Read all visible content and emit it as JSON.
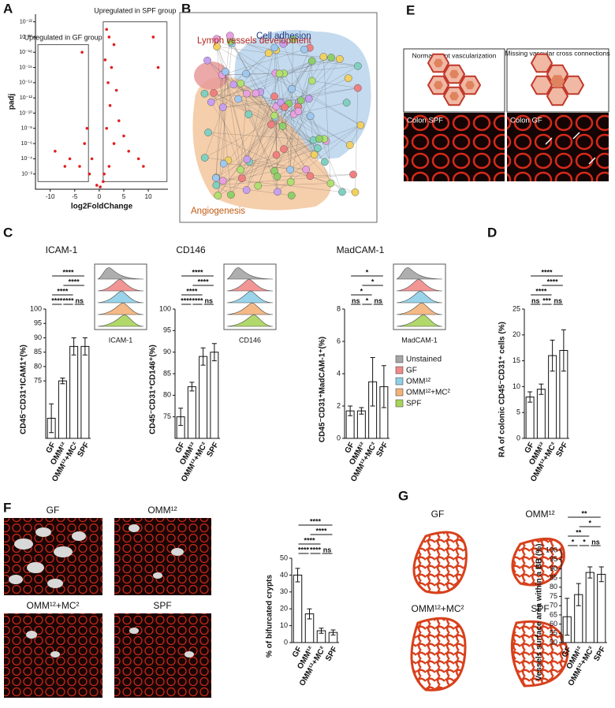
{
  "panels": {
    "a": "A",
    "b": "B",
    "c": "C",
    "d": "D",
    "e": "E",
    "f": "F",
    "g": "G"
  },
  "network": {
    "labels": [
      "Lymph vessels development",
      "Cell adhesion",
      "Angiogenesis"
    ]
  },
  "schematic": {
    "labels": [
      "Normal crypt vascularization",
      "Missing vascular cross connections"
    ],
    "images": [
      "Colon SPF",
      "Colon GF"
    ]
  },
  "histogram_legend": {
    "entries": [
      {
        "name": "Unstained",
        "color": "#a6a6a6"
      },
      {
        "name": "GF",
        "color": "#f08a8a"
      },
      {
        "name": "OMM¹²",
        "color": "#8fd0e8"
      },
      {
        "name": "OMM¹²+MC²",
        "color": "#f3b27a"
      },
      {
        "name": "SPF",
        "color": "#a8d45a"
      }
    ]
  },
  "image_labels": {
    "f": [
      "GF",
      "OMM¹²",
      "OMM¹²+MC²",
      "SPF"
    ],
    "g": [
      "GF",
      "OMM¹²",
      "OMM¹²+MC²",
      "SPF"
    ]
  },
  "chart_data": [
    {
      "type": "scatter",
      "title_gf": "Upregulated in GF group",
      "title_spf": "Upregulated in SPF group",
      "x_label": "log2FoldChange",
      "y_label": "padj",
      "ylog": true,
      "color": "#e02020",
      "x": [
        1.5,
        2,
        3,
        1.2,
        2.5,
        1.8,
        3.5,
        2.2,
        11,
        12,
        4,
        1.5,
        6,
        8,
        2,
        3,
        1,
        -3.5,
        -2.5,
        -3,
        -6,
        -9,
        -4,
        -2,
        -1.5,
        0.2,
        -0.5,
        0.8,
        5,
        9,
        -7
      ],
      "values": [
        1e-21,
        1e-20,
        1e-19,
        1e-17,
        1e-16,
        1e-14,
        1e-13,
        1e-11,
        1e-20,
        1e-16,
        1e-09,
        1e-08,
        1e-05,
        0.0001,
        0.001,
        1e-06,
        0.01,
        1e-18,
        1e-08,
        1e-06,
        0.0001,
        1e-05,
        0.001,
        0.01,
        0.0001,
        0.5,
        0.3,
        0.1,
        1e-07,
        0.001,
        0.001
      ],
      "xlim": [
        -13,
        14
      ],
      "xticks": [
        -10,
        -5,
        0,
        5,
        10
      ],
      "ylim": [
        1,
        1e-23
      ],
      "yticks": [
        {
          "value": 1e-22,
          "label": "10⁻²²"
        },
        {
          "value": 1e-20,
          "label": "10⁻²⁰"
        },
        {
          "value": 1e-18,
          "label": "10⁻¹⁸"
        },
        {
          "value": 1e-16,
          "label": "10⁻¹⁶"
        },
        {
          "value": 1e-14,
          "label": "10⁻¹⁴"
        },
        {
          "value": 1e-12,
          "label": "10⁻¹²"
        },
        {
          "value": 1e-10,
          "label": "10⁻¹⁰"
        },
        {
          "value": 1e-08,
          "label": "10⁻⁸"
        },
        {
          "value": 1e-06,
          "label": "10⁻⁶"
        },
        {
          "value": 0.0001,
          "label": "10⁻⁴"
        },
        {
          "value": 0.01,
          "label": "10⁻²"
        }
      ]
    },
    {
      "type": "bar",
      "title": "ICAM-1",
      "y_label": "CD45⁻CD31⁺ICAM1⁺(%)",
      "categories": [
        "GF",
        "OMM¹²",
        "OMM¹²+MC²",
        "SPF"
      ],
      "values": [
        62,
        75,
        87,
        87
      ],
      "errors": [
        5,
        1,
        3,
        3
      ],
      "ylim": [
        55,
        100
      ],
      "yticks": [
        75,
        80,
        85,
        90,
        95,
        100
      ],
      "comparisons": [
        {
          "groups": [
            0,
            3
          ],
          "label": "****"
        },
        {
          "groups": [
            1,
            3
          ],
          "label": "****"
        },
        {
          "groups": [
            0,
            2
          ],
          "label": "****"
        },
        {
          "groups": [
            0,
            1
          ],
          "label": "****"
        },
        {
          "groups": [
            1,
            2
          ],
          "label": "****"
        },
        {
          "groups": [
            2,
            3
          ],
          "label": "ns"
        }
      ]
    },
    {
      "type": "bar",
      "title": "CD146",
      "y_label": "CD45⁻CD31⁺CD146⁺(%)",
      "categories": [
        "GF",
        "OMM¹²",
        "OMM¹²+MC²",
        "SPF"
      ],
      "values": [
        75,
        82,
        89,
        90
      ],
      "errors": [
        2,
        1,
        2,
        2
      ],
      "ylim": [
        70,
        100
      ],
      "yticks": [
        75,
        80,
        85,
        90,
        95,
        100
      ],
      "comparisons": [
        {
          "groups": [
            0,
            3
          ],
          "label": "****"
        },
        {
          "groups": [
            1,
            3
          ],
          "label": "****"
        },
        {
          "groups": [
            0,
            2
          ],
          "label": "****"
        },
        {
          "groups": [
            0,
            1
          ],
          "label": "****"
        },
        {
          "groups": [
            1,
            2
          ],
          "label": "****"
        },
        {
          "groups": [
            2,
            3
          ],
          "label": "ns"
        }
      ]
    },
    {
      "type": "bar",
      "title": "MadCAM-1",
      "y_label": "CD45⁻CD31⁺MadCAM-1⁺(%)",
      "categories": [
        "GF",
        "OMM¹²",
        "OMM¹²+MC²",
        "SPF"
      ],
      "values": [
        1.7,
        1.7,
        3.5,
        3.2
      ],
      "errors": [
        0.3,
        0.2,
        1.5,
        1.3
      ],
      "ylim": [
        0,
        8
      ],
      "yticks": [
        0,
        2,
        4,
        6,
        8
      ],
      "comparisons": [
        {
          "groups": [
            0,
            3
          ],
          "label": "*"
        },
        {
          "groups": [
            1,
            3
          ],
          "label": "*"
        },
        {
          "groups": [
            0,
            2
          ],
          "label": "*"
        },
        {
          "groups": [
            0,
            1
          ],
          "label": "ns"
        },
        {
          "groups": [
            1,
            2
          ],
          "label": "*"
        },
        {
          "groups": [
            2,
            3
          ],
          "label": "ns"
        }
      ]
    },
    {
      "type": "bar",
      "y_label": "RA of colonic CD45⁻CD31⁺ cells (%)",
      "categories": [
        "GF",
        "OMM¹²",
        "OMM¹²+MC²",
        "SPF"
      ],
      "values": [
        8,
        9.5,
        16,
        17
      ],
      "errors": [
        1,
        1,
        3,
        4
      ],
      "ylim": [
        0,
        25
      ],
      "yticks": [
        0,
        5,
        10,
        15,
        20,
        25
      ],
      "comparisons": [
        {
          "groups": [
            0,
            3
          ],
          "label": "****"
        },
        {
          "groups": [
            1,
            3
          ],
          "label": "****"
        },
        {
          "groups": [
            0,
            2
          ],
          "label": "****"
        },
        {
          "groups": [
            0,
            1
          ],
          "label": "ns"
        },
        {
          "groups": [
            1,
            2
          ],
          "label": "***"
        },
        {
          "groups": [
            2,
            3
          ],
          "label": "ns"
        }
      ]
    },
    {
      "type": "bar",
      "y_label": "% of bifurcated crypts",
      "categories": [
        "GF",
        "OMM¹²",
        "OMM¹²+MC²",
        "SPF"
      ],
      "values": [
        40,
        17,
        7,
        6
      ],
      "errors": [
        4,
        3,
        1.5,
        1.5
      ],
      "ylim": [
        0,
        50
      ],
      "yticks": [
        0,
        10,
        20,
        30,
        40,
        50
      ],
      "comparisons": [
        {
          "groups": [
            0,
            3
          ],
          "label": "****"
        },
        {
          "groups": [
            1,
            3
          ],
          "label": "****"
        },
        {
          "groups": [
            0,
            2
          ],
          "label": "****"
        },
        {
          "groups": [
            0,
            1
          ],
          "label": "****"
        },
        {
          "groups": [
            1,
            2
          ],
          "label": "****"
        },
        {
          "groups": [
            2,
            3
          ],
          "label": "ns"
        }
      ]
    },
    {
      "type": "bar",
      "y_label": "Vessels surface area within a BB (%)",
      "categories": [
        "GF",
        "OMM¹²",
        "OMM¹²+MC²",
        "SPF"
      ],
      "values": [
        64,
        76,
        88,
        87
      ],
      "errors": [
        10,
        6,
        3,
        4
      ],
      "ylim": [
        50,
        100
      ],
      "yticks": [
        50,
        55,
        60,
        65,
        70,
        75,
        80,
        85,
        90,
        95,
        100
      ],
      "comparisons": [
        {
          "groups": [
            0,
            3
          ],
          "label": "**"
        },
        {
          "groups": [
            1,
            3
          ],
          "label": "*"
        },
        {
          "groups": [
            0,
            2
          ],
          "label": "**"
        },
        {
          "groups": [
            0,
            1
          ],
          "label": "*"
        },
        {
          "groups": [
            1,
            2
          ],
          "label": "*"
        },
        {
          "groups": [
            2,
            3
          ],
          "label": "ns"
        }
      ]
    }
  ]
}
